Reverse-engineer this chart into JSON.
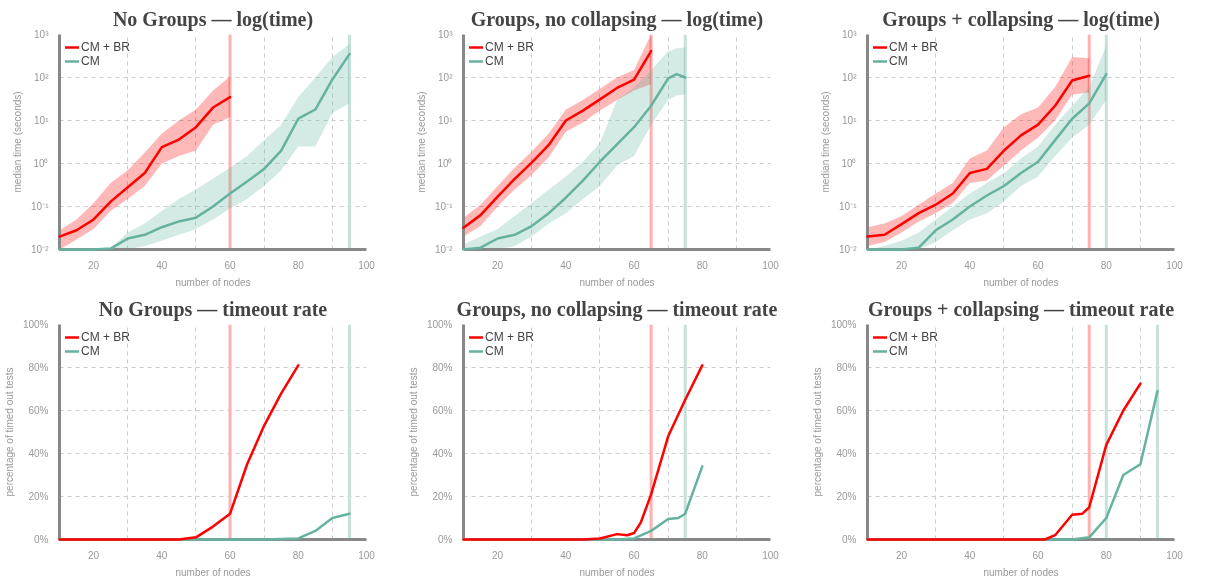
{
  "chart_data": [
    {
      "type": "line",
      "title": "No Groups — log(time)",
      "xlabel": "number of nodes",
      "ylabel": "median time (seconds)",
      "log": true,
      "grid": true,
      "legend": "top left",
      "xlim": [
        10,
        100
      ],
      "xticks": [
        20,
        {
          "value": 30,
          "label": null
        },
        40,
        {
          "value": 50,
          "label": null
        },
        60,
        {
          "value": 70,
          "label": null
        },
        80,
        {
          "value": 90,
          "label": null
        },
        100
      ],
      "ylim": [
        0.01,
        1000
      ],
      "yticks": [
        {
          "value": 0.01,
          "label": "10⁻²"
        },
        {
          "value": 0.1,
          "label": "10⁻¹"
        },
        {
          "value": 1,
          "label": "10⁰"
        },
        {
          "value": 10,
          "label": "10¹"
        },
        {
          "value": 100,
          "label": "10²"
        },
        {
          "value": 1000,
          "label": "10³"
        }
      ],
      "series": [
        {
          "name": "CM + BR",
          "color": "#ff0000",
          "x": [
            10,
            15,
            20,
            25,
            30,
            35,
            40,
            45,
            50,
            55,
            60
          ],
          "values": [
            0.02,
            0.028,
            0.05,
            0.13,
            0.28,
            0.6,
            2.4,
            3.6,
            7,
            20,
            35
          ],
          "upper": [
            0.028,
            0.05,
            0.12,
            0.35,
            0.7,
            1.8,
            5,
            10,
            18,
            50,
            105
          ],
          "lower": [
            0.01,
            0.017,
            0.03,
            0.08,
            0.15,
            0.3,
            1,
            1.5,
            2,
            8,
            12
          ]
        },
        {
          "name": "CM",
          "color": "#66b2a0",
          "x": [
            10,
            15,
            20,
            25,
            30,
            35,
            40,
            45,
            50,
            55,
            60,
            65,
            70,
            75,
            80,
            85,
            90,
            95
          ],
          "values": [
            0.01,
            0.01,
            0.01,
            0.0105,
            0.018,
            0.022,
            0.033,
            0.045,
            0.055,
            0.1,
            0.2,
            0.38,
            0.75,
            2,
            11,
            18,
            90,
            350
          ],
          "upper": [
            0.01,
            0.01,
            0.01,
            0.011,
            0.025,
            0.04,
            0.08,
            0.15,
            0.25,
            0.45,
            0.8,
            1.5,
            3.5,
            8,
            35,
            100,
            300,
            600
          ],
          "lower": [
            0.01,
            0.01,
            0.01,
            0.01,
            0.01,
            0.012,
            0.016,
            0.022,
            0.03,
            0.05,
            0.09,
            0.15,
            0.3,
            0.7,
            2.5,
            2.5,
            15,
            25
          ]
        }
      ],
      "ref_lines": [
        {
          "axis": "x",
          "value": 60,
          "color": "#ffb0b0"
        },
        {
          "axis": "x",
          "value": 95,
          "color": "#c5e2da"
        }
      ]
    },
    {
      "type": "line",
      "title": "Groups, no collapsing — log(time)",
      "xlabel": "number of nodes",
      "ylabel": "median time (seconds)",
      "log": true,
      "grid": true,
      "legend": "top left",
      "xlim": [
        10,
        100
      ],
      "xticks": [
        20,
        {
          "value": 30,
          "label": null
        },
        40,
        {
          "value": 50,
          "label": null
        },
        60,
        {
          "value": 70,
          "label": null
        },
        80,
        {
          "value": 90,
          "label": null
        },
        100
      ],
      "ylim": [
        0.01,
        1000
      ],
      "yticks": [
        {
          "value": 0.01,
          "label": "10⁻²"
        },
        {
          "value": 0.1,
          "label": "10⁻¹"
        },
        {
          "value": 1,
          "label": "10⁰"
        },
        {
          "value": 10,
          "label": "10¹"
        },
        {
          "value": 100,
          "label": "10²"
        },
        {
          "value": 1000,
          "label": "10³"
        }
      ],
      "series": [
        {
          "name": "CM + BR",
          "color": "#ff0000",
          "x": [
            10,
            15,
            20,
            25,
            30,
            35,
            40,
            45,
            50,
            55,
            60,
            65
          ],
          "values": [
            0.032,
            0.063,
            0.17,
            0.44,
            1.05,
            2.7,
            10,
            17,
            31,
            57,
            89,
            410
          ],
          "upper": [
            0.055,
            0.11,
            0.3,
            0.8,
            1.9,
            5,
            18,
            30,
            55,
            100,
            150,
            1000
          ],
          "lower": [
            0.02,
            0.035,
            0.1,
            0.25,
            0.55,
            1.4,
            5.5,
            9,
            17,
            30,
            50,
            70
          ]
        },
        {
          "name": "CM",
          "color": "#66b2a0",
          "x": [
            10,
            15,
            20,
            25,
            30,
            35,
            40,
            45,
            50,
            55,
            60,
            65,
            70,
            72.5,
            75
          ],
          "values": [
            0.01,
            0.011,
            0.018,
            0.022,
            0.035,
            0.07,
            0.16,
            0.4,
            1.1,
            2.8,
            7,
            22,
            95,
            120,
            100
          ],
          "upper": [
            0.013,
            0.02,
            0.03,
            0.06,
            0.12,
            0.25,
            0.5,
            1.1,
            3,
            30,
            60,
            150,
            400,
            480,
            500
          ],
          "lower": [
            0.01,
            0.01,
            0.01,
            0.012,
            0.02,
            0.04,
            0.07,
            0.15,
            0.3,
            0.9,
            1.5,
            8,
            30,
            38,
            40
          ]
        }
      ],
      "ref_lines": [
        {
          "axis": "x",
          "value": 65,
          "color": "#ffb0b0"
        },
        {
          "axis": "x",
          "value": 75,
          "color": "#c5e2da"
        }
      ]
    },
    {
      "type": "line",
      "title": "Groups + collapsing — log(time)",
      "xlabel": "number of nodes",
      "ylabel": "median time (seconds)",
      "log": true,
      "grid": true,
      "legend": "top left",
      "xlim": [
        10,
        100
      ],
      "xticks": [
        20,
        {
          "value": 30,
          "label": null
        },
        40,
        {
          "value": 50,
          "label": null
        },
        60,
        {
          "value": 70,
          "label": null
        },
        80,
        {
          "value": 90,
          "label": null
        },
        100
      ],
      "ylim": [
        0.01,
        1000
      ],
      "yticks": [
        {
          "value": 0.01,
          "label": "10⁻²"
        },
        {
          "value": 0.1,
          "label": "10⁻¹"
        },
        {
          "value": 1,
          "label": "10⁰"
        },
        {
          "value": 10,
          "label": "10¹"
        },
        {
          "value": 100,
          "label": "10²"
        },
        {
          "value": 1000,
          "label": "10³"
        }
      ],
      "series": [
        {
          "name": "CM + BR",
          "color": "#ff0000",
          "x": [
            10,
            15,
            20,
            25,
            30,
            35,
            40,
            45,
            50,
            55,
            60,
            65,
            70,
            75
          ],
          "values": [
            0.02,
            0.022,
            0.039,
            0.07,
            0.11,
            0.2,
            0.6,
            0.75,
            2,
            4.5,
            8,
            22,
            85,
            110
          ],
          "upper": [
            0.033,
            0.04,
            0.06,
            0.11,
            0.2,
            0.35,
            1.3,
            2,
            7,
            14,
            20,
            60,
            300,
            280
          ],
          "lower": [
            0.012,
            0.015,
            0.025,
            0.045,
            0.07,
            0.12,
            0.35,
            0.4,
            0.9,
            2,
            4,
            10,
            40,
            45
          ]
        },
        {
          "name": "CM",
          "color": "#66b2a0",
          "x": [
            10,
            15,
            20,
            25,
            30,
            35,
            40,
            45,
            50,
            55,
            60,
            65,
            70,
            75,
            80
          ],
          "values": [
            0.01,
            0.01,
            0.01,
            0.011,
            0.028,
            0.05,
            0.1,
            0.18,
            0.3,
            0.6,
            1.1,
            3.5,
            11,
            25,
            120
          ],
          "upper": [
            0.01,
            0.012,
            0.016,
            0.025,
            0.05,
            0.1,
            0.2,
            0.35,
            0.6,
            1.3,
            2.5,
            8,
            22,
            60,
            550
          ],
          "lower": [
            0.01,
            0.01,
            0.01,
            0.01,
            0.015,
            0.028,
            0.05,
            0.07,
            0.13,
            0.3,
            0.5,
            1.5,
            4,
            8,
            30
          ]
        }
      ],
      "ref_lines": [
        {
          "axis": "x",
          "value": 75,
          "color": "#ffb0b0"
        },
        {
          "axis": "x",
          "value": 80,
          "color": "#c5e2da"
        }
      ]
    },
    {
      "type": "line",
      "title": "No Groups — timeout rate",
      "xlabel": "number of nodes",
      "ylabel": "percentage of timed out tests",
      "grid": true,
      "legend": "top left",
      "xlim": [
        10,
        100
      ],
      "xticks": [
        20,
        {
          "value": 30,
          "label": null
        },
        40,
        {
          "value": 50,
          "label": null
        },
        60,
        {
          "value": 70,
          "label": null
        },
        80,
        {
          "value": 90,
          "label": null
        },
        100
      ],
      "ylim": [
        0,
        100
      ],
      "yticks": [
        {
          "value": 0,
          "label": "0%"
        },
        {
          "value": 20,
          "label": "20%"
        },
        {
          "value": 40,
          "label": "40%"
        },
        {
          "value": 60,
          "label": "60%"
        },
        {
          "value": 80,
          "label": "80%"
        },
        {
          "value": 100,
          "label": "100%"
        }
      ],
      "series": [
        {
          "name": "CM + BR",
          "color": "#ff0000",
          "x": [
            10,
            20,
            30,
            40,
            45,
            50,
            55,
            60,
            65,
            70,
            75,
            80
          ],
          "values": [
            0,
            0,
            0,
            0,
            0,
            1,
            6,
            12,
            35,
            53,
            68,
            81
          ]
        },
        {
          "name": "CM",
          "color": "#66b2a0",
          "x": [
            10,
            20,
            30,
            40,
            50,
            60,
            70,
            80,
            85,
            90,
            95
          ],
          "values": [
            0,
            0,
            0,
            0,
            0,
            0,
            0,
            0.5,
            4,
            10,
            12
          ]
        }
      ],
      "ref_lines": [
        {
          "axis": "x",
          "value": 60,
          "color": "#ffb0b0"
        },
        {
          "axis": "x",
          "value": 95,
          "color": "#c5e2da"
        }
      ]
    },
    {
      "type": "line",
      "title": "Groups, no collapsing — timeout rate",
      "xlabel": "number of nodes",
      "ylabel": "percentage of timed out tests",
      "grid": true,
      "legend": "top left",
      "xlim": [
        10,
        100
      ],
      "xticks": [
        20,
        {
          "value": 30,
          "label": null
        },
        40,
        {
          "value": 50,
          "label": null
        },
        60,
        {
          "value": 70,
          "label": null
        },
        80,
        {
          "value": 90,
          "label": null
        },
        100
      ],
      "ylim": [
        0,
        100
      ],
      "yticks": [
        {
          "value": 0,
          "label": "0%"
        },
        {
          "value": 20,
          "label": "20%"
        },
        {
          "value": 40,
          "label": "40%"
        },
        {
          "value": 60,
          "label": "60%"
        },
        {
          "value": 80,
          "label": "80%"
        },
        {
          "value": 100,
          "label": "100%"
        }
      ],
      "series": [
        {
          "name": "CM + BR",
          "color": "#ff0000",
          "x": [
            10,
            20,
            30,
            40,
            45,
            50,
            55,
            58,
            60,
            62,
            65,
            70,
            75,
            80
          ],
          "values": [
            0,
            0,
            0,
            0,
            0,
            0.5,
            2.5,
            2,
            3,
            8,
            21,
            48,
            65,
            81
          ]
        },
        {
          "name": "CM",
          "color": "#66b2a0",
          "x": [
            10,
            20,
            30,
            40,
            50,
            55,
            60,
            65,
            70,
            73,
            75,
            80
          ],
          "values": [
            0,
            0,
            0,
            0,
            0,
            0,
            0.5,
            4,
            9.5,
            10,
            12,
            34
          ]
        }
      ],
      "ref_lines": [
        {
          "axis": "x",
          "value": 65,
          "color": "#ffb0b0"
        },
        {
          "axis": "x",
          "value": 75,
          "color": "#c5e2da"
        }
      ]
    },
    {
      "type": "line",
      "title": "Groups + collapsing — timeout rate",
      "xlabel": "number of nodes",
      "ylabel": "percentage of timed out tests",
      "grid": true,
      "legend": "top left",
      "xlim": [
        10,
        100
      ],
      "xticks": [
        20,
        {
          "value": 30,
          "label": null
        },
        40,
        {
          "value": 50,
          "label": null
        },
        60,
        {
          "value": 70,
          "label": null
        },
        80,
        {
          "value": 90,
          "label": null
        },
        100
      ],
      "ylim": [
        0,
        100
      ],
      "yticks": [
        {
          "value": 0,
          "label": "0%"
        },
        {
          "value": 20,
          "label": "20%"
        },
        {
          "value": 40,
          "label": "40%"
        },
        {
          "value": 60,
          "label": "60%"
        },
        {
          "value": 80,
          "label": "80%"
        },
        {
          "value": 100,
          "label": "100%"
        }
      ],
      "series": [
        {
          "name": "CM + BR",
          "color": "#ff0000",
          "x": [
            10,
            20,
            30,
            40,
            50,
            60,
            62,
            65,
            70,
            73,
            75,
            80,
            85,
            90
          ],
          "values": [
            0,
            0,
            0,
            0,
            0,
            0,
            0,
            2,
            11.5,
            12,
            15,
            44,
            60,
            72.5
          ]
        },
        {
          "name": "CM",
          "color": "#66b2a0",
          "x": [
            10,
            20,
            30,
            40,
            50,
            60,
            70,
            75,
            80,
            85,
            88,
            90,
            95
          ],
          "values": [
            0,
            0,
            0,
            0,
            0,
            0,
            0,
            1,
            10,
            30,
            33,
            35,
            69
          ]
        }
      ],
      "ref_lines": [
        {
          "axis": "x",
          "value": 75,
          "color": "#ffb0b0"
        },
        {
          "axis": "x",
          "value": 80,
          "color": "#c5e2da"
        },
        {
          "axis": "x",
          "value": 95,
          "color": "#c5e2da"
        }
      ]
    }
  ]
}
